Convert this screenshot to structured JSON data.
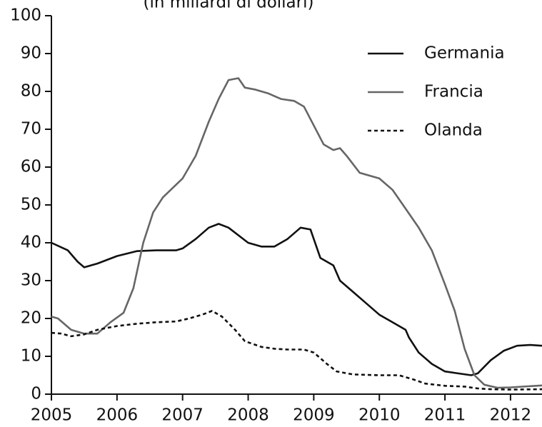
{
  "chart_data": {
    "type": "line",
    "subtitle": "(in miliardi di dollari)",
    "xlim": [
      2005,
      2012.48
    ],
    "xticks": [
      2005,
      2006,
      2007,
      2008,
      2009,
      2010,
      2011,
      2012
    ],
    "ylim": [
      0,
      100
    ],
    "yticks": [
      0,
      10,
      20,
      30,
      40,
      50,
      60,
      70,
      80,
      90,
      100
    ],
    "legend": "upper right",
    "series": [
      {
        "name": "Germania",
        "color": "#111111",
        "dash": "solid",
        "x": [
          2005,
          2005.25,
          2005.4,
          2005.5,
          2005.7,
          2006,
          2006.3,
          2006.6,
          2006.9,
          2007,
          2007.2,
          2007.4,
          2007.55,
          2007.7,
          2008,
          2008.2,
          2008.4,
          2008.6,
          2008.8,
          2008.95,
          2009.1,
          2009.3,
          2009.4,
          2009.6,
          2009.8,
          2010,
          2010.2,
          2010.4,
          2010.45,
          2010.6,
          2010.8,
          2011,
          2011.2,
          2011.4,
          2011.5,
          2011.7,
          2011.9,
          2012.1,
          2012.3,
          2012.48
        ],
        "values": [
          40,
          38,
          35,
          33.5,
          34.5,
          36.5,
          37.8,
          38,
          38,
          38.5,
          41,
          44,
          45,
          44,
          40,
          39,
          39,
          41,
          44,
          43.5,
          36,
          34,
          30,
          27,
          24,
          21,
          19,
          17,
          15,
          11,
          8,
          6,
          5.5,
          5,
          5.5,
          9,
          11.5,
          12.8,
          13,
          12.8
        ]
      },
      {
        "name": "Francia",
        "color": "#666666",
        "dash": "solid",
        "x": [
          2005,
          2005.1,
          2005.3,
          2005.5,
          2005.7,
          2005.9,
          2006.1,
          2006.25,
          2006.4,
          2006.55,
          2006.7,
          2007,
          2007.2,
          2007.4,
          2007.55,
          2007.7,
          2007.85,
          2007.95,
          2008.1,
          2008.3,
          2008.5,
          2008.7,
          2008.85,
          2009,
          2009.15,
          2009.3,
          2009.4,
          2009.5,
          2009.7,
          2010,
          2010.2,
          2010.4,
          2010.6,
          2010.8,
          2011,
          2011.15,
          2011.3,
          2011.45,
          2011.6,
          2011.8,
          2012,
          2012.48
        ],
        "values": [
          20.5,
          20,
          17,
          16,
          16,
          19,
          21.5,
          28,
          40,
          48,
          52,
          57,
          63,
          72,
          78,
          83,
          83.5,
          81,
          80.5,
          79.5,
          78,
          77.5,
          76,
          71,
          66,
          64.5,
          65,
          63,
          58.5,
          57,
          54,
          49,
          44,
          38,
          29,
          22,
          12,
          5,
          2.5,
          1.7,
          1.8,
          2.3
        ]
      },
      {
        "name": "Olanda",
        "color": "#111111",
        "dash": "dashed",
        "x": [
          2005,
          2005.15,
          2005.3,
          2005.5,
          2005.7,
          2006,
          2006.3,
          2006.6,
          2006.9,
          2007.1,
          2007.3,
          2007.45,
          2007.6,
          2007.8,
          2007.95,
          2008.2,
          2008.4,
          2008.6,
          2008.85,
          2009,
          2009.2,
          2009.35,
          2009.6,
          2010,
          2010.3,
          2010.5,
          2010.7,
          2011,
          2011.3,
          2011.5,
          2011.7,
          2012,
          2012.48
        ],
        "values": [
          16.2,
          16,
          15.3,
          15.8,
          17,
          18,
          18.6,
          19,
          19.2,
          20,
          21,
          22,
          20.5,
          17,
          14,
          12.5,
          12,
          11.8,
          11.8,
          11,
          8,
          6,
          5.2,
          5,
          5,
          4,
          2.8,
          2.2,
          2,
          1.5,
          1.3,
          1.2,
          1.3
        ]
      }
    ]
  }
}
